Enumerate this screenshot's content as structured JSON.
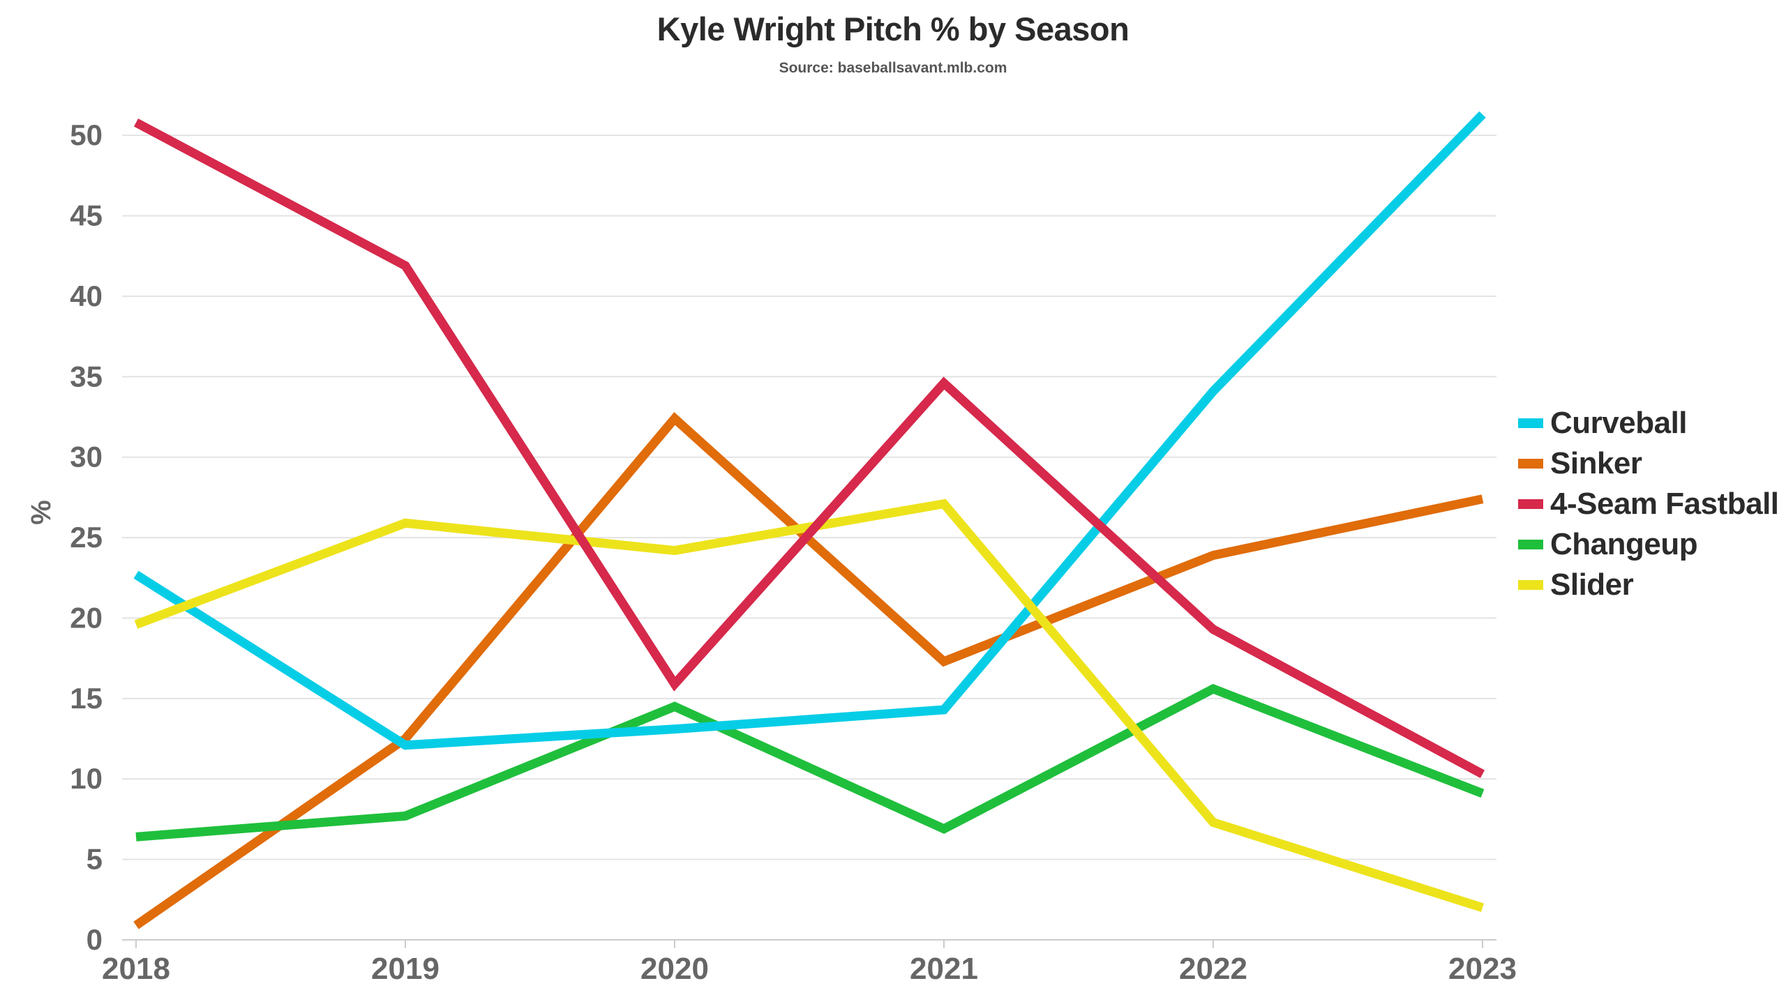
{
  "chart_data": {
    "type": "line",
    "title": "Kyle Wright Pitch % by Season",
    "subtitle": "Source: baseballsavant.mlb.com",
    "xlabel": "",
    "ylabel": "%",
    "x": [
      "2018",
      "2019",
      "2020",
      "2021",
      "2022",
      "2023"
    ],
    "ylim": [
      0,
      52
    ],
    "yticks": [
      "0",
      "5",
      "10",
      "15",
      "20",
      "25",
      "30",
      "35",
      "40",
      "45",
      "50"
    ],
    "grid": "horizontal",
    "legend_position": "right",
    "series": [
      {
        "name": "Curveball",
        "color": "#06cde6",
        "values": [
          22.7,
          12.1,
          13.1,
          14.3,
          34.1,
          51.3
        ]
      },
      {
        "name": "Sinker",
        "color": "#e06c0a",
        "values": [
          0.9,
          12.5,
          32.4,
          17.3,
          23.9,
          27.4
        ]
      },
      {
        "name": "4-Seam Fastball",
        "color": "#d6294b",
        "values": [
          50.8,
          41.9,
          15.9,
          34.6,
          19.3,
          10.3
        ]
      },
      {
        "name": "Changeup",
        "color": "#1fbf3c",
        "values": [
          6.4,
          7.7,
          14.5,
          6.9,
          15.6,
          9.1
        ]
      },
      {
        "name": "Slider",
        "color": "#ede31b",
        "values": [
          19.6,
          25.9,
          24.2,
          27.1,
          7.3,
          2.0
        ]
      }
    ]
  }
}
